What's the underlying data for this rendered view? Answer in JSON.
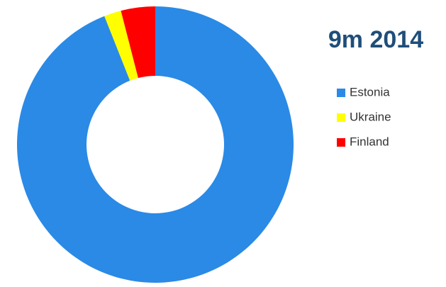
{
  "chart_data": {
    "type": "donut",
    "title": "9m 2014",
    "categories": [
      "Estonia",
      "Ukraine",
      "Finland"
    ],
    "values": [
      94,
      2,
      4
    ],
    "colors": [
      "#2a8ae6",
      "#ffff00",
      "#ff0000"
    ],
    "legend": "right"
  }
}
